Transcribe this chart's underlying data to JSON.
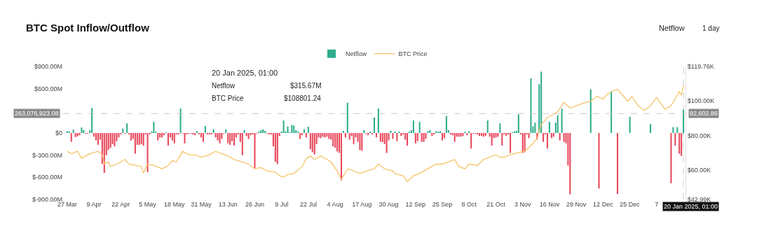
{
  "chart_data": {
    "type": "bar",
    "title": "BTC Spot Inflow/Outflow",
    "legend": "top",
    "x": [
      "2024-03-27",
      "2024-03-28",
      "2024-03-29",
      "2024-03-30",
      "2024-03-31",
      "2024-04-01",
      "2024-04-02",
      "2024-04-03",
      "2024-04-04",
      "2024-04-05",
      "2024-04-06",
      "2024-04-07",
      "2024-04-08",
      "2024-04-09",
      "2024-04-10",
      "2024-04-11",
      "2024-04-12",
      "2024-04-13",
      "2024-04-14",
      "2024-04-15",
      "2024-04-16",
      "2024-04-17",
      "2024-04-18",
      "2024-04-19",
      "2024-04-20",
      "2024-04-21",
      "2024-04-22",
      "2024-04-23",
      "2024-04-24",
      "2024-04-25",
      "2024-04-26",
      "2024-04-27",
      "2024-04-28",
      "2024-04-29",
      "2024-04-30",
      "2024-05-01",
      "2024-05-02",
      "2024-05-03",
      "2024-05-04",
      "2024-05-05",
      "2024-05-06",
      "2024-05-07",
      "2024-05-08",
      "2024-05-09",
      "2024-05-10",
      "2024-05-11",
      "2024-05-12",
      "2024-05-13",
      "2024-05-14",
      "2024-05-15",
      "2024-05-16",
      "2024-05-17",
      "2024-05-18",
      "2024-05-19",
      "2024-05-20",
      "2024-05-21",
      "2024-05-22",
      "2024-05-23",
      "2024-05-24",
      "2024-05-25",
      "2024-05-26",
      "2024-05-27",
      "2024-05-28",
      "2024-05-29",
      "2024-05-30",
      "2024-05-31",
      "2024-06-01",
      "2024-06-02",
      "2024-06-03",
      "2024-06-04",
      "2024-06-05",
      "2024-06-06",
      "2024-06-07",
      "2024-06-08",
      "2024-06-09",
      "2024-06-10",
      "2024-06-11",
      "2024-06-12",
      "2024-06-13",
      "2024-06-14",
      "2024-06-15",
      "2024-06-16",
      "2024-06-17",
      "2024-06-18",
      "2024-06-19",
      "2024-06-20",
      "2024-06-21",
      "2024-06-22",
      "2024-06-23",
      "2024-06-24",
      "2024-06-25",
      "2024-06-26",
      "2024-06-27",
      "2024-06-28",
      "2024-06-29",
      "2024-06-30",
      "2024-07-01",
      "2024-07-02",
      "2024-07-03",
      "2024-07-04",
      "2024-07-05",
      "2024-07-06",
      "2024-07-07",
      "2024-07-08",
      "2024-07-09",
      "2024-07-10",
      "2024-07-11",
      "2024-07-12",
      "2024-07-13",
      "2024-07-14",
      "2024-07-15",
      "2024-07-16",
      "2024-07-17",
      "2024-07-18",
      "2024-07-19",
      "2024-07-20",
      "2024-07-21",
      "2024-07-22",
      "2024-07-23",
      "2024-07-24",
      "2024-07-25",
      "2024-07-26",
      "2024-07-27",
      "2024-07-28",
      "2024-07-29",
      "2024-07-30",
      "2024-07-31",
      "2024-08-01",
      "2024-08-02",
      "2024-08-03",
      "2024-08-04",
      "2024-08-05",
      "2024-08-06",
      "2024-08-07",
      "2024-08-08",
      "2024-08-09",
      "2024-08-10",
      "2024-08-11",
      "2024-08-12",
      "2024-08-13",
      "2024-08-14",
      "2024-08-15",
      "2024-08-16",
      "2024-08-17",
      "2024-08-18",
      "2024-08-19",
      "2024-08-20",
      "2024-08-21",
      "2024-08-22",
      "2024-08-23",
      "2024-08-24",
      "2024-08-25",
      "2024-08-26",
      "2024-08-27",
      "2024-08-28",
      "2024-08-29",
      "2024-08-30",
      "2024-08-31",
      "2024-09-01",
      "2024-09-02",
      "2024-09-03",
      "2024-09-04",
      "2024-09-05",
      "2024-09-06",
      "2024-09-07",
      "2024-09-08",
      "2024-09-09",
      "2024-09-10",
      "2024-09-11",
      "2024-09-12",
      "2024-09-13",
      "2024-09-14",
      "2024-09-15",
      "2024-09-16",
      "2024-09-17",
      "2024-09-18",
      "2024-09-19",
      "2024-09-20",
      "2024-09-21",
      "2024-09-22",
      "2024-09-23",
      "2024-09-24",
      "2024-09-25",
      "2024-09-26",
      "2024-09-27",
      "2024-09-28",
      "2024-09-29",
      "2024-09-30",
      "2024-10-01",
      "2024-10-02",
      "2024-10-03",
      "2024-10-04",
      "2024-10-05",
      "2024-10-06",
      "2024-10-07",
      "2024-10-08",
      "2024-10-09",
      "2024-10-10",
      "2024-10-11",
      "2024-10-12",
      "2024-10-13",
      "2024-10-14",
      "2024-10-15",
      "2024-10-16",
      "2024-10-17",
      "2024-10-18",
      "2024-10-19",
      "2024-10-20",
      "2024-10-21",
      "2024-10-22",
      "2024-10-23",
      "2024-10-24",
      "2024-10-25",
      "2024-10-26",
      "2024-10-27",
      "2024-10-28",
      "2024-10-29",
      "2024-10-30",
      "2024-10-31",
      "2024-11-01",
      "2024-11-02",
      "2024-11-03",
      "2024-11-04",
      "2024-11-05",
      "2024-11-06",
      "2024-11-07",
      "2024-11-08",
      "2024-11-09",
      "2024-11-10",
      "2024-11-11",
      "2024-11-12",
      "2024-11-13",
      "2024-11-14",
      "2024-11-15",
      "2024-11-16",
      "2024-11-17",
      "2024-11-18",
      "2024-11-19",
      "2024-11-20",
      "2024-11-21",
      "2024-11-22",
      "2024-11-23",
      "2024-11-24",
      "2024-11-25",
      "2024-11-26",
      "2024-11-27",
      "2024-11-28",
      "2024-11-29",
      "2024-11-30",
      "2024-12-01",
      "2024-12-02",
      "2024-12-03",
      "2024-12-04",
      "2024-12-05",
      "2024-12-06",
      "2024-12-07",
      "2024-12-08",
      "2024-12-09",
      "2024-12-10",
      "2024-12-11",
      "2024-12-12",
      "2024-12-13",
      "2024-12-14",
      "2024-12-15",
      "2024-12-16",
      "2024-12-17",
      "2024-12-18",
      "2024-12-19",
      "2024-12-20",
      "2024-12-21",
      "2024-12-22",
      "2024-12-23",
      "2024-12-24",
      "2024-12-25",
      "2024-12-26",
      "2024-12-27",
      "2024-12-28",
      "2024-12-29",
      "2024-12-30",
      "2024-12-31",
      "2025-01-01",
      "2025-01-02",
      "2025-01-03",
      "2025-01-04",
      "2025-01-05",
      "2025-01-06",
      "2025-01-07",
      "2025-01-08",
      "2025-01-09",
      "2025-01-10",
      "2025-01-11",
      "2025-01-12",
      "2025-01-13",
      "2025-01-14",
      "2025-01-15",
      "2025-01-16",
      "2025-01-17",
      "2025-01-18",
      "2025-01-19",
      "2025-01-20"
    ],
    "series": [
      {
        "name": "Netflow",
        "values": [
          25,
          20,
          -120,
          45,
          -55,
          -45,
          -30,
          75,
          40,
          -5,
          -5,
          40,
          340,
          -50,
          -100,
          -160,
          -90,
          -420,
          -540,
          -300,
          -230,
          -200,
          -150,
          -180,
          -110,
          -60,
          -15,
          60,
          -5,
          130,
          -20,
          -100,
          -80,
          -280,
          -160,
          -160,
          -150,
          -170,
          -20,
          -530,
          -15,
          15,
          150,
          15,
          -100,
          -60,
          -60,
          -30,
          5,
          -170,
          -60,
          -100,
          -140,
          -20,
          -20,
          330,
          -5,
          -140,
          -10,
          -5,
          -5,
          -15,
          -30,
          25,
          -10,
          -60,
          -120,
          95,
          -20,
          -15,
          -15,
          50,
          -60,
          -100,
          -140,
          -80,
          -5,
          50,
          -140,
          -160,
          -110,
          -170,
          -60,
          -10,
          -120,
          -300,
          40,
          -40,
          -80,
          -30,
          -20,
          -480,
          -5,
          15,
          40,
          50,
          30,
          -5,
          -15,
          -10,
          -180,
          -390,
          -420,
          -40,
          20,
          170,
          15,
          90,
          5,
          110,
          100,
          40,
          20,
          -80,
          -30,
          50,
          -60,
          85,
          -220,
          -260,
          -290,
          -150,
          -60,
          -70,
          -50,
          -60,
          -50,
          -80,
          -90,
          -180,
          -200,
          -250,
          -270,
          -640,
          30,
          -60,
          410,
          -90,
          -40,
          -150,
          -60,
          -120,
          -230,
          -240,
          40,
          -5,
          -30,
          20,
          -10,
          210,
          -60,
          330,
          -120,
          -120,
          -150,
          -270,
          -100,
          30,
          -80,
          20,
          -110,
          20,
          -40,
          -20,
          -90,
          -170,
          15,
          40,
          170,
          -140,
          -110,
          150,
          -120,
          -120,
          -80,
          25,
          40,
          -40,
          -10,
          25,
          15,
          25,
          -100,
          -70,
          230,
          40,
          -20,
          -30,
          -120,
          -50,
          -50,
          -50,
          -40,
          10,
          -30,
          25,
          -210,
          -5,
          -5,
          -10,
          -40,
          -40,
          -50,
          -40,
          170,
          -50,
          -170,
          -70,
          -60,
          -50,
          130,
          -170,
          -15,
          -40,
          -20,
          -270,
          5,
          20,
          30,
          250,
          -10,
          -270,
          -260,
          -10,
          -70,
          740,
          90,
          140,
          -90,
          660,
          830,
          -120,
          -10,
          -210,
          150,
          -70,
          -50,
          140,
          240,
          -100,
          330,
          -120,
          -140,
          -440,
          -830,
          null,
          null,
          null,
          null,
          null,
          null,
          null,
          null,
          null,
          590,
          null,
          null,
          null,
          -750,
          null,
          null,
          null,
          null,
          null,
          565,
          null,
          null,
          -825,
          null,
          null,
          null,
          null,
          null,
          220,
          null,
          null,
          null,
          null,
          null,
          null,
          null,
          null,
          null,
          120,
          null,
          null,
          null,
          null,
          null,
          null,
          null,
          null,
          null,
          -680,
          80,
          -170,
          80,
          -280,
          -310,
          315.67
        ],
        "colors": [
          "#2ead8b",
          "#2ead8b",
          "#e8475b",
          "#2ead8b",
          "#e8475b",
          "#e8475b",
          "#e8475b",
          "#2ead8b",
          "#2ead8b",
          "#e8475b",
          "#e8475b",
          "#2ead8b",
          "#2ead8b",
          "#e8475b",
          "#e8475b",
          "#e8475b",
          "#e8475b",
          "#e8475b",
          "#e8475b",
          "#e8475b",
          "#e8475b",
          "#e8475b",
          "#e8475b",
          "#e8475b",
          "#e8475b",
          "#e8475b",
          "#e8475b",
          "#2ead8b",
          "#e8475b",
          "#2ead8b",
          "#e8475b",
          "#e8475b",
          "#e8475b",
          "#e8475b",
          "#e8475b",
          "#e8475b",
          "#e8475b",
          "#e8475b",
          "#e8475b",
          "#e8475b",
          "#e8475b",
          "#2ead8b",
          "#2ead8b",
          "#2ead8b",
          "#e8475b",
          "#e8475b",
          "#e8475b",
          "#e8475b",
          "#2ead8b",
          "#e8475b",
          "#e8475b",
          "#e8475b",
          "#e8475b",
          "#e8475b",
          "#e8475b",
          "#2ead8b",
          "#e8475b",
          "#e8475b",
          "#e8475b",
          "#e8475b",
          "#e8475b",
          "#e8475b",
          "#e8475b",
          "#2ead8b",
          "#e8475b",
          "#e8475b",
          "#e8475b",
          "#2ead8b",
          "#e8475b",
          "#e8475b",
          "#e8475b",
          "#2ead8b",
          "#e8475b",
          "#e8475b",
          "#e8475b",
          "#e8475b",
          "#e8475b",
          "#2ead8b",
          "#e8475b",
          "#e8475b",
          "#e8475b",
          "#e8475b",
          "#e8475b",
          "#e8475b",
          "#e8475b",
          "#e8475b",
          "#2ead8b",
          "#e8475b",
          "#e8475b",
          "#e8475b",
          "#e8475b",
          "#e8475b",
          "#e8475b",
          "#2ead8b",
          "#2ead8b",
          "#2ead8b",
          "#2ead8b",
          "#e8475b",
          "#e8475b",
          "#e8475b",
          "#e8475b",
          "#e8475b",
          "#e8475b",
          "#e8475b",
          "#2ead8b",
          "#2ead8b",
          "#2ead8b",
          "#2ead8b",
          "#2ead8b",
          "#2ead8b",
          "#2ead8b",
          "#2ead8b",
          "#2ead8b",
          "#e8475b",
          "#e8475b",
          "#2ead8b",
          "#e8475b",
          "#2ead8b",
          "#e8475b",
          "#e8475b",
          "#e8475b",
          "#e8475b",
          "#e8475b",
          "#e8475b",
          "#e8475b",
          "#e8475b",
          "#e8475b",
          "#e8475b",
          "#e8475b",
          "#e8475b",
          "#e8475b",
          "#e8475b",
          "#e8475b",
          "#e8475b",
          "#2ead8b",
          "#e8475b",
          "#2ead8b",
          "#e8475b",
          "#e8475b",
          "#e8475b",
          "#e8475b",
          "#e8475b",
          "#e8475b",
          "#e8475b",
          "#2ead8b",
          "#e8475b",
          "#e8475b",
          "#2ead8b",
          "#e8475b",
          "#2ead8b",
          "#e8475b",
          "#2ead8b",
          "#e8475b",
          "#e8475b",
          "#e8475b",
          "#e8475b",
          "#e8475b",
          "#2ead8b",
          "#e8475b",
          "#2ead8b",
          "#e8475b",
          "#2ead8b",
          "#e8475b",
          "#e8475b",
          "#e8475b",
          "#e8475b",
          "#2ead8b",
          "#2ead8b",
          "#2ead8b",
          "#e8475b",
          "#e8475b",
          "#2ead8b",
          "#e8475b",
          "#e8475b",
          "#e8475b",
          "#2ead8b",
          "#2ead8b",
          "#e8475b",
          "#e8475b",
          "#2ead8b",
          "#2ead8b",
          "#2ead8b",
          "#e8475b",
          "#e8475b",
          "#2ead8b",
          "#2ead8b",
          "#e8475b",
          "#e8475b",
          "#e8475b",
          "#e8475b",
          "#e8475b",
          "#e8475b",
          "#e8475b",
          "#2ead8b",
          "#e8475b",
          "#2ead8b",
          "#e8475b",
          "#e8475b",
          "#e8475b",
          "#e8475b",
          "#e8475b",
          "#e8475b",
          "#e8475b",
          "#e8475b",
          "#2ead8b",
          "#e8475b",
          "#e8475b",
          "#e8475b",
          "#e8475b",
          "#e8475b",
          "#2ead8b",
          "#e8475b",
          "#e8475b",
          "#e8475b",
          "#e8475b",
          "#e8475b",
          "#2ead8b",
          "#2ead8b",
          "#2ead8b",
          "#2ead8b",
          "#e8475b",
          "#e8475b",
          "#e8475b",
          "#e8475b",
          "#e8475b",
          "#2ead8b",
          "#2ead8b",
          "#2ead8b",
          "#e8475b",
          "#2ead8b",
          "#2ead8b",
          "#e8475b",
          "#e8475b",
          "#e8475b",
          "#2ead8b",
          "#e8475b",
          "#e8475b",
          "#2ead8b",
          "#2ead8b",
          "#e8475b",
          "#2ead8b",
          "#e8475b",
          "#e8475b",
          "#e8475b",
          "#e8475b",
          "#e8475b",
          "#e8475b",
          "#e8475b",
          "#e8475b",
          "#e8475b",
          "#e8475b",
          "#e8475b",
          "#e8475b",
          "#e8475b",
          "#2ead8b",
          "#e8475b",
          "#e8475b",
          "#e8475b",
          "#e8475b",
          "#e8475b",
          "#e8475b",
          "#e8475b",
          "#e8475b",
          "#e8475b",
          "#2ead8b",
          "#e8475b",
          "#e8475b",
          "#e8475b",
          "#e8475b",
          "#e8475b",
          "#e8475b",
          "#e8475b",
          "#e8475b",
          "#2ead8b",
          "#e8475b",
          "#e8475b",
          "#e8475b",
          "#e8475b",
          "#e8475b",
          "#e8475b",
          "#e8475b",
          "#e8475b",
          "#e8475b",
          "#2ead8b",
          "#e8475b",
          "#e8475b",
          "#e8475b",
          "#e8475b",
          "#e8475b",
          "#e8475b",
          "#e8475b",
          "#e8475b",
          "#e8475b",
          "#e8475b",
          "#2ead8b",
          "#e8475b",
          "#2ead8b",
          "#e8475b",
          "#e8475b",
          "#2ead8b"
        ]
      },
      {
        "name": "BTC Price",
        "type": "line",
        "axis": "y2",
        "color": "#f5c46a",
        "x": [
          "2024-03-27",
          "2024-03-29",
          "2024-04-01",
          "2024-04-03",
          "2024-04-05",
          "2024-04-07",
          "2024-04-11",
          "2024-04-13",
          "2024-04-14",
          "2024-04-16",
          "2024-04-17",
          "2024-04-20",
          "2024-04-22",
          "2024-04-24",
          "2024-04-26",
          "2024-04-29",
          "2024-05-02",
          "2024-05-03",
          "2024-05-05",
          "2024-05-08",
          "2024-05-12",
          "2024-05-15",
          "2024-05-17",
          "2024-05-19",
          "2024-05-22",
          "2024-05-25",
          "2024-05-28",
          "2024-05-31",
          "2024-06-04",
          "2024-06-07",
          "2024-06-10",
          "2024-06-13",
          "2024-06-16",
          "2024-06-20",
          "2024-06-23",
          "2024-06-26",
          "2024-06-29",
          "2024-07-02",
          "2024-07-06",
          "2024-07-08",
          "2024-07-10",
          "2024-07-12",
          "2024-07-15",
          "2024-07-19",
          "2024-07-21",
          "2024-07-23",
          "2024-07-25",
          "2024-07-28",
          "2024-07-31",
          "2024-08-02",
          "2024-08-05",
          "2024-08-07",
          "2024-08-10",
          "2024-08-12",
          "2024-08-16",
          "2024-08-19",
          "2024-08-23",
          "2024-08-25",
          "2024-08-28",
          "2024-09-01",
          "2024-09-02",
          "2024-09-06",
          "2024-09-08",
          "2024-09-11",
          "2024-09-14",
          "2024-09-16",
          "2024-09-19",
          "2024-09-22",
          "2024-09-25",
          "2024-09-28",
          "2024-10-01",
          "2024-10-03",
          "2024-10-06",
          "2024-10-08",
          "2024-10-12",
          "2024-10-15",
          "2024-10-18",
          "2024-10-21",
          "2024-10-23",
          "2024-10-25",
          "2024-10-28",
          "2024-11-01",
          "2024-11-04",
          "2024-11-07",
          "2024-11-10",
          "2024-11-12",
          "2024-11-15",
          "2024-11-18",
          "2024-11-20",
          "2024-11-23",
          "2024-11-26",
          "2024-11-29",
          "2024-12-02",
          "2024-12-06",
          "2024-12-09",
          "2024-12-12",
          "2024-12-14",
          "2024-12-17",
          "2024-12-19",
          "2024-12-22",
          "2024-12-24",
          "2024-12-26",
          "2024-12-29",
          "2025-01-01",
          "2025-01-04",
          "2025-01-07",
          "2025-01-11",
          "2025-01-14",
          "2025-01-18",
          "2025-01-19",
          "2025-01-20"
        ],
        "values": [
          70.8,
          69.4,
          70.8,
          66.7,
          68.1,
          69.4,
          70.8,
          68.8,
          63.4,
          64.7,
          62.0,
          63.4,
          64.7,
          66.1,
          63.4,
          62.7,
          62.0,
          58.3,
          63.4,
          62.7,
          60.7,
          62.7,
          65.4,
          64.7,
          70.8,
          68.8,
          68.8,
          67.4,
          68.8,
          70.8,
          69.4,
          68.1,
          66.1,
          64.7,
          63.4,
          60.7,
          61.4,
          59.4,
          58.7,
          56.7,
          56.0,
          57.4,
          58.0,
          62.0,
          66.7,
          68.1,
          66.1,
          68.1,
          66.1,
          64.7,
          59.4,
          54.6,
          60.7,
          60.0,
          58.0,
          59.4,
          60.7,
          63.4,
          60.7,
          59.4,
          58.0,
          56.7,
          53.3,
          56.7,
          58.0,
          59.4,
          61.4,
          63.4,
          63.4,
          64.7,
          66.1,
          62.0,
          60.7,
          63.4,
          62.7,
          66.1,
          67.4,
          68.8,
          67.4,
          67.4,
          68.8,
          70.1,
          70.8,
          74.1,
          78.2,
          86.3,
          90.3,
          92.3,
          93.7,
          99.1,
          95.7,
          97.1,
          98.4,
          99.8,
          102.5,
          101.1,
          103.8,
          105.8,
          106.5,
          102.5,
          99.8,
          102.5,
          97.1,
          94.4,
          97.1,
          101.8,
          95.1,
          97.1,
          105.2,
          103.2,
          108.80124
        ]
      }
    ],
    "xlim": [
      "2024-03-25",
      "2025-01-21"
    ],
    "xticks": [
      {
        "value": "2024-03-27",
        "label": "27 Mar"
      },
      {
        "value": "2024-04-09",
        "label": "9 Apr"
      },
      {
        "value": "2024-04-22",
        "label": "22 Apr"
      },
      {
        "value": "2024-05-05",
        "label": "5 May"
      },
      {
        "value": "2024-05-18",
        "label": "18 May"
      },
      {
        "value": "2024-05-31",
        "label": "31 May"
      },
      {
        "value": "2024-06-13",
        "label": "13 Jun"
      },
      {
        "value": "2024-06-26",
        "label": "26 Jun"
      },
      {
        "value": "2024-07-09",
        "label": "9 Jul"
      },
      {
        "value": "2024-07-22",
        "label": "22 Jul"
      },
      {
        "value": "2024-08-04",
        "label": "4 Aug"
      },
      {
        "value": "2024-08-17",
        "label": "17 Aug"
      },
      {
        "value": "2024-08-30",
        "label": "30 Aug"
      },
      {
        "value": "2024-09-12",
        "label": "12 Sep"
      },
      {
        "value": "2024-09-25",
        "label": "25 Sep"
      },
      {
        "value": "2024-10-08",
        "label": "8 Oct"
      },
      {
        "value": "2024-10-21",
        "label": "21 Oct"
      },
      {
        "value": "2024-11-03",
        "label": "3 Nov"
      },
      {
        "value": "2024-11-16",
        "label": "16 Nov"
      },
      {
        "value": "2024-11-29",
        "label": "29 Nov"
      },
      {
        "value": "2024-12-12",
        "label": "12 Dec"
      },
      {
        "value": "2024-12-25",
        "label": "25 Dec"
      },
      {
        "value": "2025-01-07",
        "label": "7"
      }
    ],
    "ylim": [
      -900,
      900
    ],
    "yticks": [
      {
        "value": 900,
        "label": "$900.00M"
      },
      {
        "value": 600,
        "label": "$600.00M"
      },
      {
        "value": 0,
        "label": "$0"
      },
      {
        "value": -300,
        "label": "$-300.00M"
      },
      {
        "value": -600,
        "label": "$-600.00M"
      },
      {
        "value": -900,
        "label": "$-900.00M"
      }
    ],
    "y2lim": [
      42.99,
      119.76
    ],
    "y2ticks": [
      {
        "value": 119.76,
        "label": "$119.76K"
      },
      {
        "value": 100,
        "label": "$100.00K"
      },
      {
        "value": 80,
        "label": "$80.00K"
      },
      {
        "value": 60,
        "label": "$60.00K"
      },
      {
        "value": 42.99,
        "label": "$42.99K"
      }
    ],
    "ref_lines": [
      {
        "axis": "y",
        "value": 263.07692308,
        "label": "263,076,923.08",
        "color": "#c8c8c8",
        "line_style": "dashed"
      },
      {
        "axis": "x",
        "value": "2025-01-20",
        "label": "20 Jan 2025, 01:00",
        "color": "#c8c8c8",
        "line_style": "dashed"
      }
    ],
    "annotations": [
      "20 Jan 2025, 01:00",
      "Netflow",
      "$315.67M",
      "BTC Price",
      "$108801.24",
      "Netflow",
      "1 day",
      "92,602.86"
    ]
  }
}
